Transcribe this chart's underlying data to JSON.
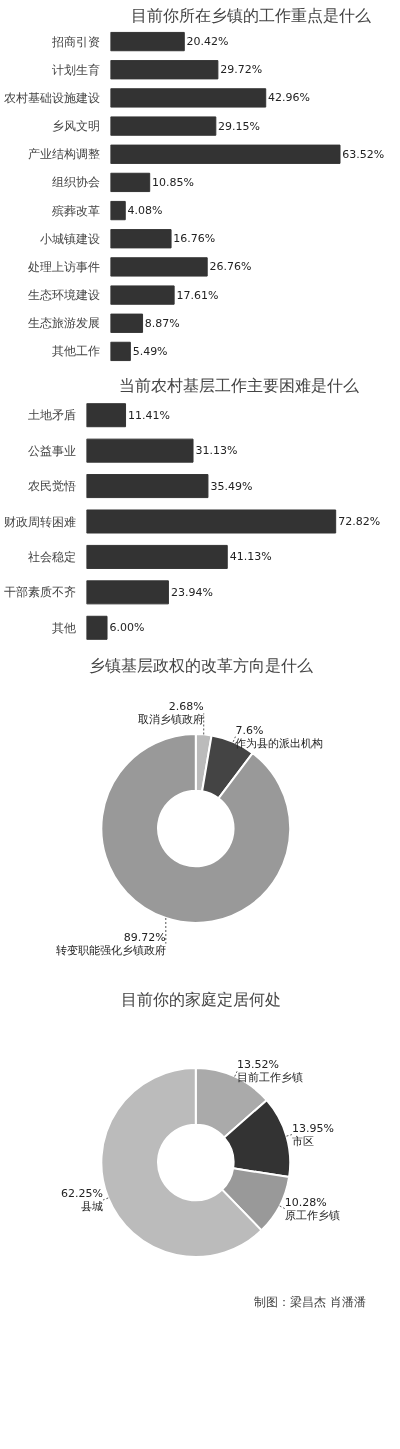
{
  "chart_data": [
    {
      "type": "bar",
      "orientation": "horizontal",
      "title": "目前你所在乡镇的工作重点是什么",
      "categories": [
        "招商引资",
        "计划生育",
        "农村基础设施建设",
        "乡风文明",
        "产业结构调整",
        "组织协会",
        "殡葬改革",
        "小城镇建设",
        "处理上访事件",
        "生态环境建设",
        "生态旅游发展",
        "其他工作"
      ],
      "values": [
        20.42,
        29.72,
        42.96,
        29.15,
        63.52,
        10.85,
        4.08,
        16.76,
        26.76,
        17.61,
        8.87,
        5.49
      ],
      "value_labels": [
        "20.42%",
        "29.72%",
        "42.96%",
        "29.15%",
        "63.52%",
        "10.85%",
        "4.08%",
        "16.76%",
        "26.76%",
        "17.61%",
        "8.87%",
        "5.49%"
      ],
      "color": "#333333",
      "tick_labels": "y"
    },
    {
      "type": "bar",
      "orientation": "horizontal",
      "title": "当前农村基层工作主要困难是什么",
      "categories": [
        "土地矛盾",
        "公益事业",
        "农民觉悟",
        "财政周转困难",
        "社会稳定",
        "干部素质不齐",
        "其他"
      ],
      "values": [
        11.41,
        31.13,
        35.49,
        72.82,
        41.13,
        23.94,
        6.0
      ],
      "value_labels": [
        "11.41%",
        "31.13%",
        "35.49%",
        "72.82%",
        "41.13%",
        "23.94%",
        "6.00%"
      ],
      "color": "#333333",
      "tick_labels": "y"
    },
    {
      "type": "donut",
      "title": "乡镇基层政权的改革方向是什么",
      "categories": [
        "取消乡镇政府",
        "作为县的派出机构",
        "转变职能强化乡镇政府"
      ],
      "values": [
        2.68,
        7.6,
        89.72
      ],
      "value_labels": [
        "2.68%",
        "7.6%",
        "89.72%"
      ],
      "colors": [
        "#bbbbbb",
        "#444444",
        "#999999"
      ]
    },
    {
      "type": "donut",
      "title": "目前你的家庭定居何处",
      "categories": [
        "目前工作乡镇",
        "市区",
        "原工作乡镇",
        "县城"
      ],
      "values": [
        13.52,
        13.95,
        10.28,
        62.25
      ],
      "value_labels": [
        "13.52%",
        "13.95%",
        "10.28%",
        "62.25%"
      ],
      "colors": [
        "#aaaaaa",
        "#333333",
        "#999999",
        "#bbbbbb"
      ],
      "annotations": [
        "制图：梁昌杰 肖潘潘"
      ]
    }
  ]
}
